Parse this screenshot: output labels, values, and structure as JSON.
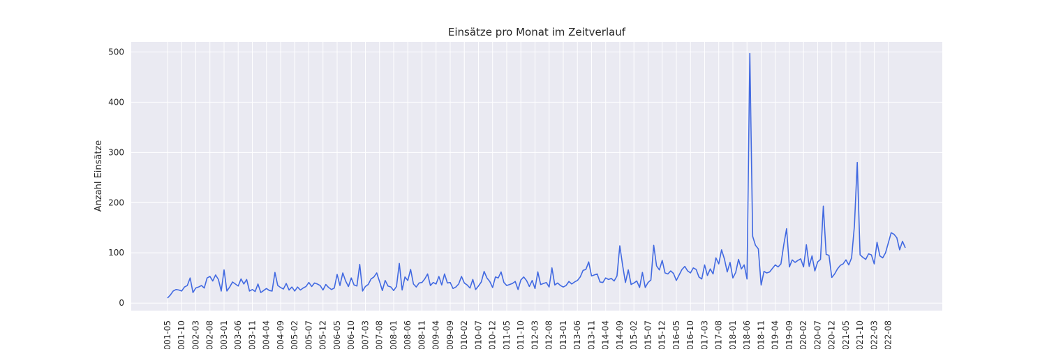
{
  "chart_data": {
    "type": "line",
    "title": "Einsätze pro Monat im Zeitverlauf",
    "xlabel": "",
    "ylabel": "Anzahl Einsätze",
    "ylim": [
      -15,
      520
    ],
    "yticks": [
      0,
      100,
      200,
      300,
      400,
      500
    ],
    "grid": true,
    "color": "#4169E1",
    "start": "2001-05",
    "xtick_labels": [
      "2001-05",
      "2001-10",
      "2002-03",
      "2002-08",
      "2003-01",
      "2003-06",
      "2003-11",
      "2004-04",
      "2004-09",
      "2005-02",
      "2005-07",
      "2005-12",
      "2006-05",
      "2006-10",
      "2007-03",
      "2007-08",
      "2008-01",
      "2008-06",
      "2008-11",
      "2009-04",
      "2009-09",
      "2010-02",
      "2010-07",
      "2010-12",
      "2011-05",
      "2011-10",
      "2012-03",
      "2012-08",
      "2013-01",
      "2013-06",
      "2013-11",
      "2014-04",
      "2014-09",
      "2015-02",
      "2015-07",
      "2015-12",
      "2016-05",
      "2016-10",
      "2017-03",
      "2017-08",
      "2018-01",
      "2018-06",
      "2018-11",
      "2019-04",
      "2019-09",
      "2020-02",
      "2020-07",
      "2020-12",
      "2021-05",
      "2021-10",
      "2022-03",
      "2022-08"
    ],
    "values": [
      10,
      16,
      24,
      27,
      26,
      24,
      32,
      35,
      50,
      21,
      30,
      32,
      35,
      30,
      50,
      53,
      44,
      56,
      47,
      24,
      66,
      24,
      32,
      42,
      38,
      34,
      48,
      38,
      47,
      24,
      27,
      23,
      38,
      21,
      25,
      29,
      25,
      24,
      61,
      35,
      31,
      28,
      39,
      26,
      32,
      24,
      32,
      26,
      30,
      33,
      41,
      33,
      40,
      38,
      35,
      26,
      37,
      31,
      27,
      30,
      57,
      35,
      60,
      44,
      33,
      50,
      36,
      34,
      77,
      24,
      33,
      37,
      48,
      52,
      60,
      43,
      25,
      45,
      34,
      32,
      25,
      33,
      79,
      26,
      52,
      45,
      67,
      38,
      32,
      40,
      41,
      48,
      58,
      35,
      41,
      38,
      53,
      36,
      58,
      40,
      41,
      29,
      32,
      38,
      53,
      40,
      36,
      30,
      47,
      27,
      34,
      42,
      63,
      50,
      43,
      31,
      52,
      50,
      62,
      41,
      35,
      37,
      39,
      43,
      27,
      46,
      52,
      45,
      33,
      45,
      29,
      62,
      37,
      39,
      41,
      32,
      70,
      36,
      40,
      35,
      32,
      35,
      43,
      38,
      42,
      45,
      52,
      65,
      67,
      82,
      54,
      56,
      58,
      42,
      41,
      50,
      47,
      49,
      44,
      54,
      114,
      75,
      41,
      66,
      37,
      40,
      44,
      31,
      61,
      31,
      41,
      46,
      115,
      74,
      66,
      85,
      60,
      58,
      64,
      59,
      45,
      56,
      67,
      73,
      64,
      60,
      70,
      67,
      52,
      48,
      76,
      55,
      68,
      58,
      90,
      78,
      106,
      88,
      62,
      81,
      50,
      61,
      87,
      68,
      76,
      48,
      497,
      133,
      115,
      108,
      36,
      63,
      60,
      62,
      69,
      76,
      72,
      78,
      116,
      148,
      72,
      86,
      81,
      85,
      88,
      72,
      116,
      73,
      94,
      64,
      82,
      87,
      193,
      97,
      95,
      51,
      58,
      68,
      75,
      78,
      86,
      76,
      90,
      154,
      280,
      96,
      91,
      87,
      98,
      96,
      78,
      121,
      94,
      90,
      100,
      120,
      140,
      137,
      130,
      106,
      123,
      110
    ]
  }
}
